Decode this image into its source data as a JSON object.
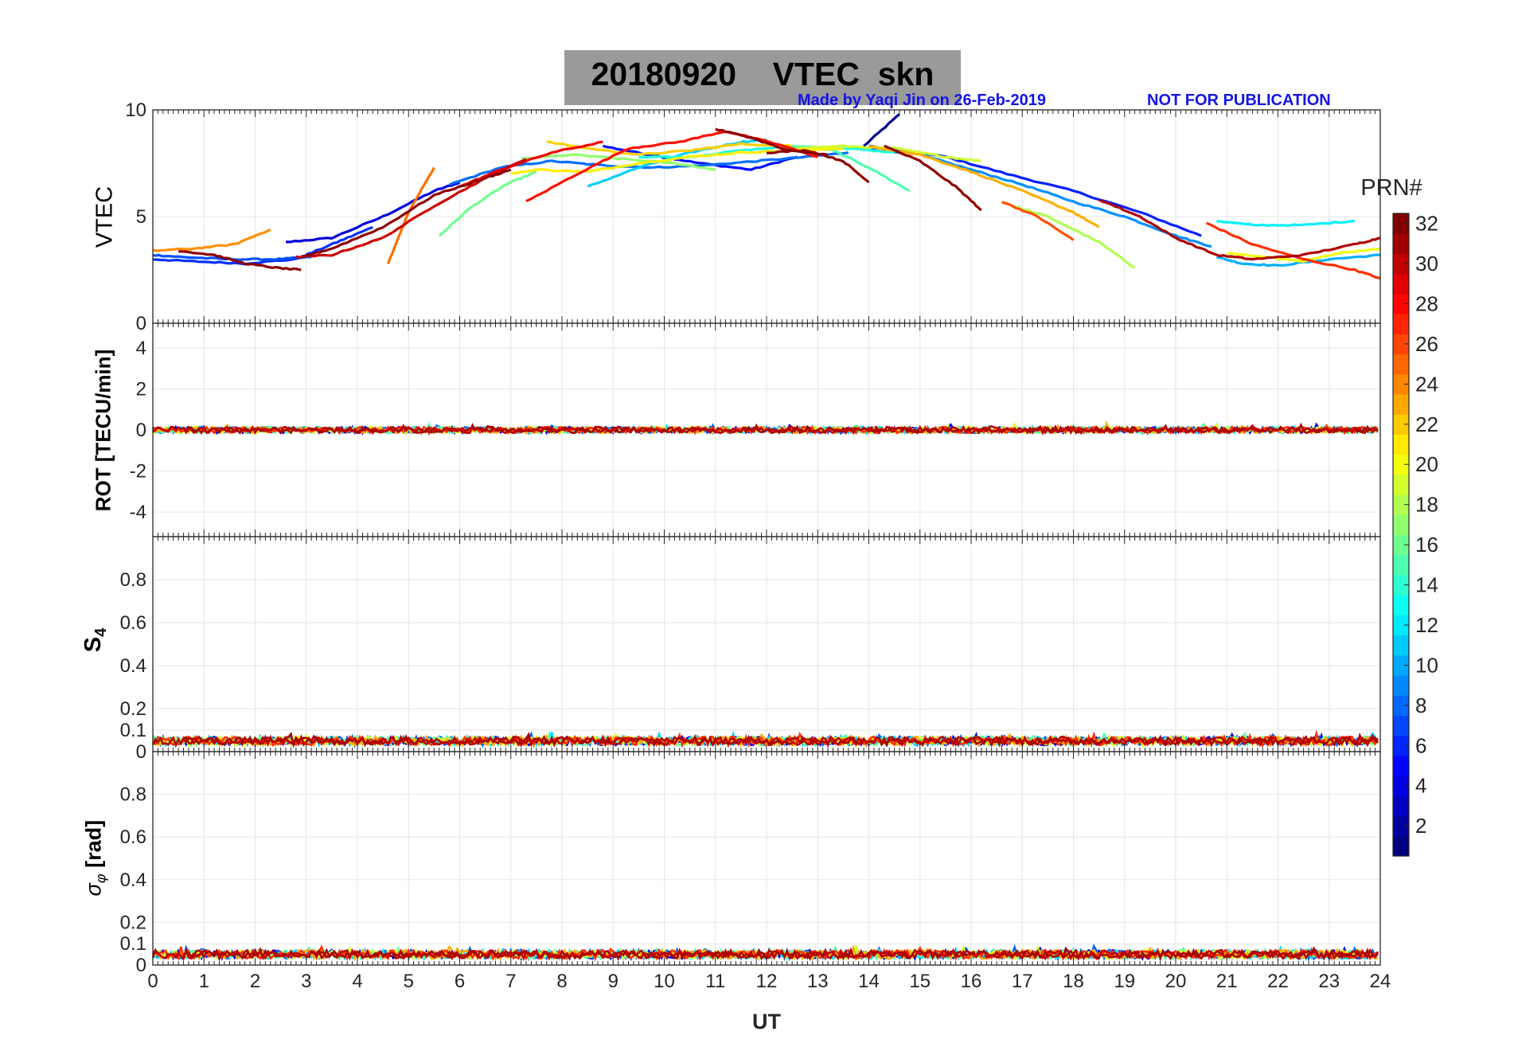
{
  "title": {
    "date": "20180920",
    "quantity": "VTEC",
    "station": "skn",
    "credit": "Made by Yaqi Jin on 26-Feb-2019",
    "notice": "NOT FOR PUBLICATION"
  },
  "colorbar": {
    "label": "PRN#",
    "min": 1,
    "max": 32,
    "ticks": [
      "2",
      "4",
      "6",
      "8",
      "10",
      "12",
      "14",
      "16",
      "18",
      "20",
      "22",
      "24",
      "26",
      "28",
      "30",
      "32"
    ],
    "colormap": "jet"
  },
  "chart_data": [
    {
      "type": "line",
      "panel": "VTEC",
      "ylabel": "VTEC",
      "xlim": [
        0,
        24
      ],
      "ylim": [
        0,
        10
      ],
      "yticks": [
        "0",
        "5",
        "10"
      ],
      "series": [
        {
          "prn": 1,
          "color": "#00008f",
          "x": [
            13.9,
            14.6
          ],
          "y": [
            8.3,
            9.8
          ]
        },
        {
          "prn": 3,
          "color": "#0000df",
          "x": [
            2.6,
            3.5,
            4.5,
            5.5,
            6.0
          ],
          "y": [
            3.8,
            4.0,
            5.0,
            6.2,
            6.6
          ]
        },
        {
          "prn": 4,
          "color": "#0010ff",
          "x": [
            8.8,
            9.7,
            10.7,
            11.7,
            12.6
          ],
          "y": [
            8.3,
            7.9,
            7.5,
            7.2,
            7.8
          ]
        },
        {
          "prn": 5,
          "color": "#0020ff",
          "x": [
            14.0,
            15.5,
            16.7,
            18.0,
            19.3,
            20.5
          ],
          "y": [
            8.3,
            7.8,
            7.0,
            6.2,
            5.2,
            4.1
          ]
        },
        {
          "prn": 6,
          "color": "#0030ff",
          "x": [
            0.0,
            0.8,
            1.8,
            2.8,
            3.6,
            4.3
          ],
          "y": [
            3.0,
            2.9,
            2.8,
            3.0,
            3.8,
            4.5
          ]
        },
        {
          "prn": 7,
          "color": "#0050ff",
          "x": [
            0.0,
            0.6,
            1.5,
            2.4,
            3.1
          ],
          "y": [
            3.2,
            3.1,
            3.0,
            3.0,
            3.1
          ]
        },
        {
          "prn": 8,
          "color": "#0070ff",
          "x": [
            5.8,
            6.8,
            7.8,
            8.8,
            9.8,
            10.8,
            11.8,
            12.8,
            13.6
          ],
          "y": [
            6.5,
            7.3,
            7.6,
            7.4,
            7.3,
            7.4,
            7.6,
            7.8,
            8.0
          ]
        },
        {
          "prn": 9,
          "color": "#0090ff",
          "x": [
            14.0,
            15.0,
            16.0,
            17.0,
            18.0,
            19.0,
            20.0,
            20.7
          ],
          "y": [
            8.2,
            7.9,
            7.2,
            6.5,
            5.7,
            5.0,
            4.1,
            3.6
          ]
        },
        {
          "prn": 10,
          "color": "#00b0ff",
          "x": [
            20.8,
            21.3,
            22.0,
            23.0,
            24.0
          ],
          "y": [
            3.1,
            2.8,
            2.7,
            3.0,
            3.2
          ]
        },
        {
          "prn": 11,
          "color": "#00d0ff",
          "x": [
            8.5,
            9.5,
            10.5,
            11.5,
            12.0
          ],
          "y": [
            6.4,
            7.3,
            8.0,
            8.5,
            8.6
          ]
        },
        {
          "prn": 12,
          "color": "#00f0ff",
          "x": [
            20.8,
            21.5,
            22.5,
            23.5
          ],
          "y": [
            4.8,
            4.6,
            4.6,
            4.8
          ]
        },
        {
          "prn": 13,
          "color": "#20ffdf",
          "x": [
            9.5,
            10.5,
            11.5,
            12.5,
            13.5,
            14.5
          ],
          "y": [
            7.8,
            7.8,
            8.1,
            8.3,
            8.2,
            8.0
          ]
        },
        {
          "prn": 15,
          "color": "#50ffaf",
          "x": [
            12.5,
            13.3,
            14.0,
            14.8
          ],
          "y": [
            8.3,
            8.1,
            7.3,
            6.2
          ]
        },
        {
          "prn": 16,
          "color": "#70ff8f",
          "x": [
            5.6,
            6.2,
            6.9,
            7.5
          ],
          "y": [
            4.1,
            5.4,
            6.5,
            7.1
          ]
        },
        {
          "prn": 17,
          "color": "#90ff6f",
          "x": [
            7.2,
            8.2,
            9.2,
            10.2,
            11.0
          ],
          "y": [
            7.7,
            7.9,
            7.7,
            7.5,
            7.2
          ]
        },
        {
          "prn": 18,
          "color": "#b0ff4f",
          "x": [
            16.8,
            17.5,
            18.5,
            19.2
          ],
          "y": [
            5.5,
            5.0,
            3.8,
            2.6
          ]
        },
        {
          "prn": 19,
          "color": "#cfff30",
          "x": [
            12.5,
            13.5,
            14.5,
            15.5,
            16.2
          ],
          "y": [
            8.2,
            8.3,
            8.2,
            7.8,
            7.6
          ]
        },
        {
          "prn": 20,
          "color": "#efff10",
          "x": [
            21.0,
            21.8,
            22.5,
            23.2,
            24.0
          ],
          "y": [
            3.3,
            3.1,
            2.9,
            3.3,
            3.5
          ]
        },
        {
          "prn": 21,
          "color": "#ffef00",
          "x": [
            7.0,
            7.5,
            8.5,
            9.5,
            10.5,
            11.5,
            12.5,
            13.5
          ],
          "y": [
            7.0,
            7.2,
            7.1,
            7.5,
            7.8,
            8.0,
            8.1,
            8.2
          ]
        },
        {
          "prn": 22,
          "color": "#ffcf00",
          "x": [
            7.7,
            8.5,
            9.5,
            10.5,
            11.5,
            12.5
          ],
          "y": [
            8.5,
            8.2,
            7.9,
            8.1,
            8.4,
            8.3
          ]
        },
        {
          "prn": 23,
          "color": "#ffaf00",
          "x": [
            14.0,
            15.0,
            16.0,
            17.0,
            18.0,
            18.5
          ],
          "y": [
            8.3,
            7.9,
            7.1,
            6.2,
            5.2,
            4.5
          ]
        },
        {
          "prn": 24,
          "color": "#ff8f00",
          "x": [
            0.0,
            0.8,
            1.6,
            2.3
          ],
          "y": [
            3.4,
            3.5,
            3.7,
            4.4
          ]
        },
        {
          "prn": 25,
          "color": "#ff6f00",
          "x": [
            4.6,
            5.0,
            5.5
          ],
          "y": [
            2.8,
            5.2,
            7.3
          ]
        },
        {
          "prn": 26,
          "color": "#ff4f00",
          "x": [
            16.6,
            17.3,
            18.0
          ],
          "y": [
            5.7,
            5.0,
            3.9
          ]
        },
        {
          "prn": 27,
          "color": "#ff2f00",
          "x": [
            20.6,
            21.5,
            22.5,
            23.5,
            24.0
          ],
          "y": [
            4.7,
            3.7,
            3.0,
            2.5,
            2.1
          ]
        },
        {
          "prn": 28,
          "color": "#ff1000",
          "x": [
            7.3,
            8.3,
            9.3,
            10.3,
            11.2,
            12.2,
            13.0
          ],
          "y": [
            5.7,
            7.0,
            8.2,
            8.5,
            9.0,
            8.4,
            7.8
          ]
        },
        {
          "prn": 29,
          "color": "#ef0000",
          "x": [
            6.0,
            6.8,
            7.8,
            8.8
          ],
          "y": [
            6.4,
            7.2,
            8.0,
            8.5
          ]
        },
        {
          "prn": 30,
          "color": "#cf0000",
          "x": [
            2.8,
            3.5,
            4.5,
            5.5,
            6.5,
            7.3
          ],
          "y": [
            3.1,
            3.2,
            4.0,
            5.5,
            6.8,
            7.7
          ]
        },
        {
          "prn": 31,
          "color": "#af0000",
          "x": [
            18.5,
            19.3,
            20.0,
            20.8,
            21.5,
            22.5,
            23.5,
            24.0
          ],
          "y": [
            5.8,
            5.0,
            4.0,
            3.2,
            3.0,
            3.2,
            3.7,
            4.0
          ]
        },
        {
          "prn": 32,
          "color": "#8f0000",
          "x": [
            12.0,
            12.8,
            13.5,
            14.0
          ],
          "y": [
            8.0,
            8.1,
            7.6,
            6.6
          ]
        },
        {
          "prn": 32,
          "color": "#8f0000",
          "x": [
            0.5,
            1.2,
            1.8,
            2.4,
            2.9
          ],
          "y": [
            3.4,
            3.2,
            2.8,
            2.6,
            2.5
          ]
        },
        {
          "prn": 32,
          "color": "#8f0000",
          "x": [
            2.9,
            3.5,
            4.5,
            5.5,
            6.5,
            7.0
          ],
          "y": [
            3.1,
            3.5,
            4.5,
            6.0,
            6.8,
            7.2
          ]
        },
        {
          "prn": 32,
          "color": "#8f0000",
          "x": [
            11.0,
            11.7,
            12.4,
            13.2
          ],
          "y": [
            9.1,
            8.7,
            8.1,
            7.9
          ]
        },
        {
          "prn": 32,
          "color": "#8f0000",
          "x": [
            14.3,
            15.0,
            15.7,
            16.2
          ],
          "y": [
            8.3,
            7.6,
            6.4,
            5.3
          ]
        }
      ]
    },
    {
      "type": "line",
      "panel": "ROT",
      "ylabel": "ROT [TECU/min]",
      "xlim": [
        0,
        24
      ],
      "ylim": [
        -5.2,
        5.2
      ],
      "yticks": [
        "-4",
        "-2",
        "0",
        "2",
        "4"
      ],
      "description_level": 0.0,
      "noise_amplitude": 0.15
    },
    {
      "type": "line",
      "panel": "S4",
      "ylabel": "S4",
      "xlim": [
        0,
        24
      ],
      "ylim": [
        0,
        1.0
      ],
      "yticks": [
        "0",
        "0.1",
        "0.2",
        "0.4",
        "0.6",
        "0.8"
      ],
      "description_level": 0.05,
      "noise_amplitude": 0.02
    },
    {
      "type": "line",
      "panel": "sigma_phi",
      "ylabel": "σφ [rad]",
      "xlim": [
        0,
        24
      ],
      "ylim": [
        0,
        1.0
      ],
      "yticks": [
        "0",
        "0.1",
        "0.2",
        "0.4",
        "0.6",
        "0.8"
      ],
      "description_level": 0.05,
      "noise_amplitude": 0.02
    }
  ],
  "xaxis": {
    "label": "UT",
    "ticks": [
      "0",
      "1",
      "2",
      "3",
      "4",
      "5",
      "6",
      "7",
      "8",
      "9",
      "10",
      "11",
      "12",
      "13",
      "14",
      "15",
      "16",
      "17",
      "18",
      "19",
      "20",
      "21",
      "22",
      "23",
      "24"
    ]
  },
  "axis_labels": {
    "vtec": "VTEC",
    "rot": "ROT [TECU/min]",
    "s4_main": "S",
    "s4_sub": "4",
    "sigma_main": "σ",
    "sigma_sub": "φ",
    "sigma_unit": "[rad]"
  }
}
